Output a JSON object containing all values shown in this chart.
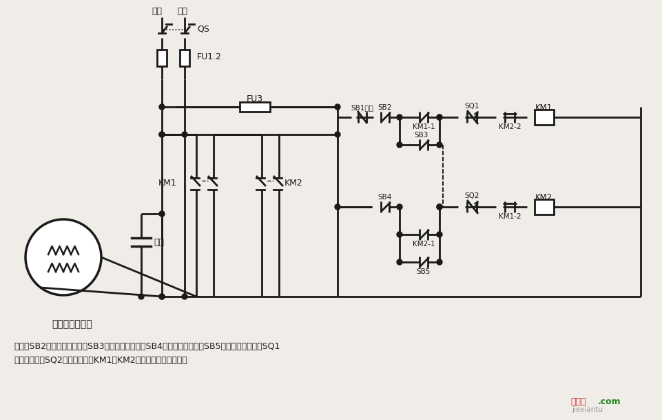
{
  "bg_color": "#f0ede8",
  "lc": "#1a1a1a",
  "lw": 2.0,
  "title": "单相电容电动机",
  "desc1": "说明：SB2为上升启动按钮，SB3为上升点动按钮，SB4为下降启动按钮，SB5为下降点动按钮；SQ1",
  "desc2": "为最高限位，SQ2为最低限位。KM1、KM2可用中间继电器代替。",
  "wm1": "接线图",
  "wm2": ".com",
  "wm3": "jiexiantu"
}
